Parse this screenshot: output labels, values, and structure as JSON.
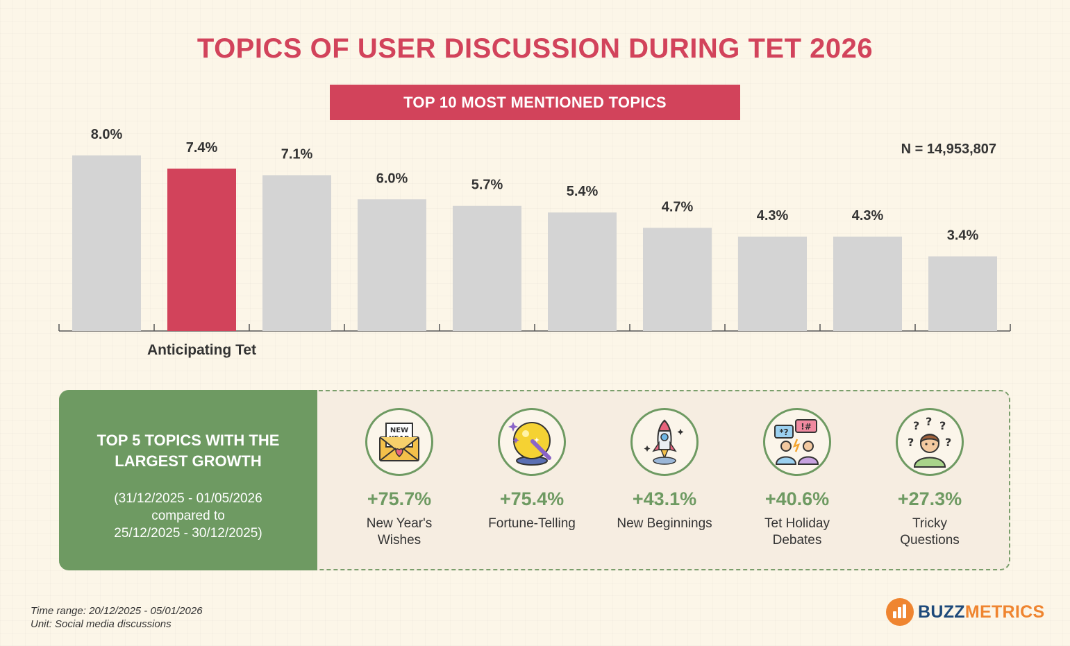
{
  "title": "TOPICS OF USER DISCUSSION DURING TET 2026",
  "banner": "TOP 10 MOST MENTIONED TOPICS",
  "n_label": "N = 14,953,807",
  "chart_data": {
    "type": "bar",
    "categories": [
      "",
      "Anticipating Tet",
      "",
      "",
      "",
      "",
      "",
      "",
      "",
      ""
    ],
    "values": [
      8.0,
      7.4,
      7.1,
      6.0,
      5.7,
      5.4,
      4.7,
      4.3,
      4.3,
      3.4
    ],
    "data_labels": [
      "8.0%",
      "7.4%",
      "7.1%",
      "6.0%",
      "5.7%",
      "5.4%",
      "4.7%",
      "4.3%",
      "4.3%",
      "3.4%"
    ],
    "highlight_index": 1,
    "colors": {
      "default": "#d4d4d4",
      "highlight": "#d2435b"
    },
    "ylim": [
      0,
      8.2
    ],
    "grid": false,
    "legend": "none"
  },
  "growth": {
    "heading": "TOP 5 TOPICS WITH THE LARGEST GROWTH",
    "period_lines": [
      "(31/12/2025 - 01/05/2026",
      "compared to",
      "25/12/2025 - 30/12/2025)"
    ],
    "topics": [
      {
        "pct": "+75.7%",
        "name_lines": [
          "New Year's",
          "Wishes"
        ],
        "icon": "new-year-envelope-icon"
      },
      {
        "pct": "+75.4%",
        "name_lines": [
          "Fortune-Telling",
          ""
        ],
        "icon": "crystal-ball-icon"
      },
      {
        "pct": "+43.1%",
        "name_lines": [
          "New Beginnings",
          ""
        ],
        "icon": "rocket-icon"
      },
      {
        "pct": "+40.6%",
        "name_lines": [
          "Tet Holiday",
          "Debates"
        ],
        "icon": "debate-people-icon"
      },
      {
        "pct": "+27.3%",
        "name_lines": [
          "Tricky",
          "Questions"
        ],
        "icon": "confused-person-icon"
      }
    ]
  },
  "footer": {
    "line1": "Time range: 20/12/2025 - 05/01/2026",
    "line2": "Unit: Social media discussions"
  },
  "logo": {
    "part1": "BUZZ",
    "part2": "METRICS"
  }
}
